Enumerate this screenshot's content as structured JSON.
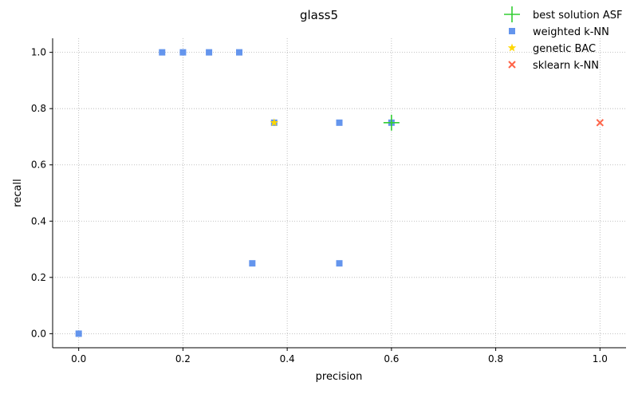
{
  "chart_data": {
    "type": "scatter",
    "title": "glass5",
    "xlabel": "precision",
    "ylabel": "recall",
    "xlim": [
      -0.05,
      1.05
    ],
    "ylim": [
      -0.05,
      1.05
    ],
    "xticks": [
      0.0,
      0.2,
      0.4,
      0.6,
      0.8,
      1.0
    ],
    "yticks": [
      0.0,
      0.2,
      0.4,
      0.6,
      0.8,
      1.0
    ],
    "xtick_labels": [
      "0.0",
      "0.2",
      "0.4",
      "0.6",
      "0.8",
      "1.0"
    ],
    "ytick_labels": [
      "0.0",
      "0.2",
      "0.4",
      "0.6",
      "0.8",
      "1.0"
    ],
    "grid": true,
    "legend_position": "top-right",
    "series": [
      {
        "name": "best solution ASF",
        "marker": "plus",
        "color": "#32cd32",
        "points": [
          [
            0.6,
            0.75
          ]
        ]
      },
      {
        "name": "weighted k-NN",
        "marker": "square",
        "color": "#6495ed",
        "points": [
          [
            0.0,
            0.0
          ],
          [
            0.16,
            1.0
          ],
          [
            0.2,
            1.0
          ],
          [
            0.25,
            1.0
          ],
          [
            0.308,
            1.0
          ],
          [
            0.333,
            0.25
          ],
          [
            0.375,
            0.75
          ],
          [
            0.5,
            0.75
          ],
          [
            0.5,
            0.25
          ],
          [
            0.6,
            0.75
          ]
        ]
      },
      {
        "name": "genetic BAC",
        "marker": "star",
        "color": "#ffd700",
        "points": [
          [
            0.375,
            0.75
          ]
        ]
      },
      {
        "name": "sklearn k-NN",
        "marker": "x",
        "color": "#ff6347",
        "points": [
          [
            1.0,
            0.75
          ]
        ]
      }
    ]
  }
}
